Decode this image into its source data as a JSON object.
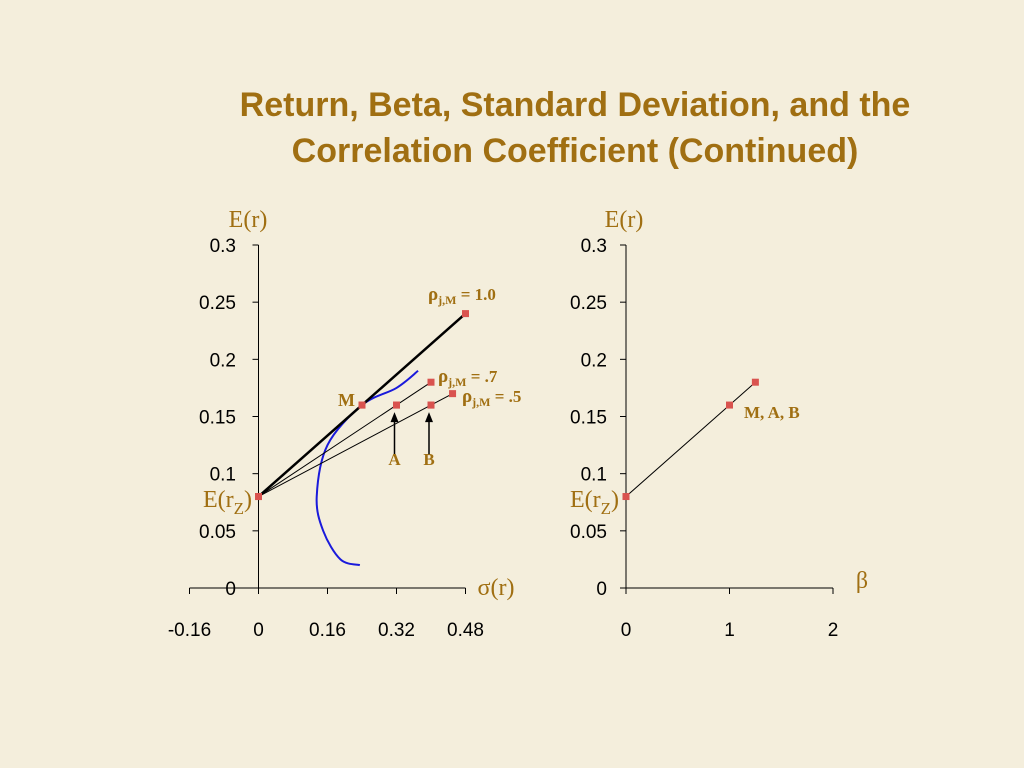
{
  "title": {
    "line1": "Return, Beta, Standard Deviation, and the",
    "line2": "Correlation Coefficient (Continued)"
  },
  "colors": {
    "background": "#f4eedc",
    "title": "#a06f12",
    "marker": "#d9534f",
    "frontier": "#1a1adb",
    "line": "#000000"
  },
  "chart_data": [
    {
      "type": "line",
      "ylabel": "E(r)",
      "xlabel": "σ(r)",
      "xlim": [
        -0.16,
        0.48
      ],
      "ylim": [
        0,
        0.3
      ],
      "x_ticks": [
        "-0.16",
        "0",
        "0.16",
        "0.32",
        "0.48"
      ],
      "y_ticks": [
        "0",
        "0.05",
        "0.1",
        "0.15",
        "0.2",
        "0.25",
        "0.3"
      ],
      "intercept_label_base": "E(r",
      "intercept_label_sub": "Z",
      "intercept_label_close": ")",
      "intercept": {
        "x": 0,
        "y": 0.08
      },
      "frontier": [
        {
          "x": 0.37,
          "y": 0.19
        },
        {
          "x": 0.32,
          "y": 0.175
        },
        {
          "x": 0.24,
          "y": 0.16
        },
        {
          "x": 0.16,
          "y": 0.125
        },
        {
          "x": 0.135,
          "y": 0.08
        },
        {
          "x": 0.15,
          "y": 0.05
        },
        {
          "x": 0.19,
          "y": 0.025
        },
        {
          "x": 0.235,
          "y": 0.02
        }
      ],
      "lines": [
        {
          "points": [
            {
              "x": 0,
              "y": 0.08
            },
            {
              "x": 0.24,
              "y": 0.16
            },
            {
              "x": 0.48,
              "y": 0.24
            }
          ],
          "label_rho": "ρ",
          "label_sub": "j,M",
          "label_rest": " = 1.0"
        },
        {
          "points": [
            {
              "x": 0,
              "y": 0.08
            },
            {
              "x": 0.32,
              "y": 0.16
            },
            {
              "x": 0.4,
              "y": 0.18
            }
          ],
          "label_rho": "ρ",
          "label_sub": "j,M",
          "label_rest": " = .7"
        },
        {
          "points": [
            {
              "x": 0,
              "y": 0.08
            },
            {
              "x": 0.4,
              "y": 0.16
            },
            {
              "x": 0.45,
              "y": 0.17
            }
          ],
          "label_rho": "ρ",
          "label_sub": "j,M",
          "label_rest": " = .5"
        }
      ],
      "points": [
        {
          "name": "M",
          "x": 0.24,
          "y": 0.16
        },
        {
          "name": "A",
          "x": 0.32,
          "y": 0.16
        },
        {
          "name": "B",
          "x": 0.4,
          "y": 0.16
        }
      ]
    },
    {
      "type": "line",
      "ylabel": "E(r)",
      "xlabel": "β",
      "xlim": [
        0,
        2
      ],
      "ylim": [
        0,
        0.3
      ],
      "x_ticks": [
        "0",
        "1",
        "2"
      ],
      "y_ticks": [
        "0",
        "0.05",
        "0.1",
        "0.15",
        "0.2",
        "0.25",
        "0.3"
      ],
      "intercept_label_base": "E(r",
      "intercept_label_sub": "Z",
      "intercept_label_close": ")",
      "series": [
        {
          "points": [
            {
              "x": 0,
              "y": 0.08
            },
            {
              "x": 1,
              "y": 0.16
            },
            {
              "x": 1.25,
              "y": 0.18
            }
          ]
        }
      ],
      "point_label": "M, A, B"
    }
  ]
}
